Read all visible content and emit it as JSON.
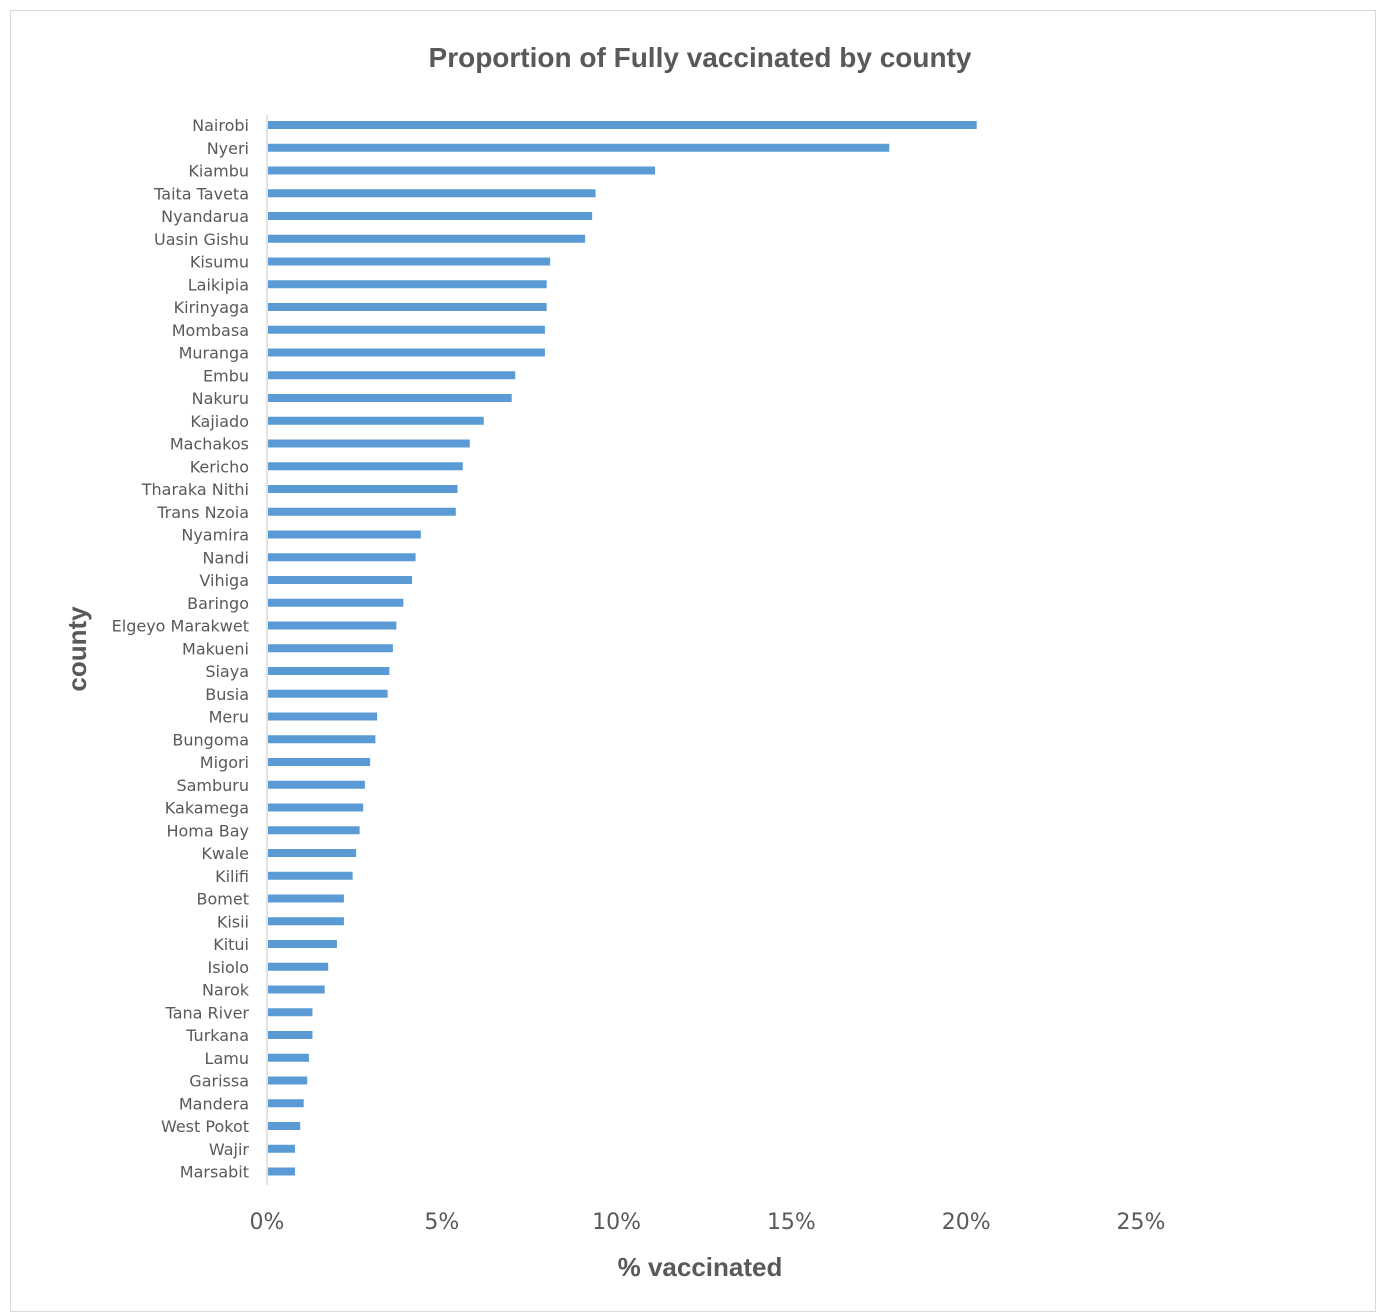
{
  "chart_data": {
    "type": "bar",
    "orientation": "horizontal",
    "title": "Proportion of Fully vaccinated by county",
    "xlabel": "% vaccinated",
    "ylabel": "county",
    "xlim": [
      0,
      25
    ],
    "x_ticks": [
      "0%",
      "5%",
      "10%",
      "15%",
      "20%",
      "25%"
    ],
    "grid": false,
    "legend": "none",
    "bar_color": "#5b9bd5",
    "categories": [
      "Nairobi",
      "Nyeri",
      "Kiambu",
      "Taita Taveta",
      "Nyandarua",
      "Uasin Gishu",
      "Kisumu",
      "Laikipia",
      "Kirinyaga",
      "Mombasa",
      "Muranga",
      "Embu",
      "Nakuru",
      "Kajiado",
      "Machakos",
      "Kericho",
      "Tharaka Nithi",
      "Trans Nzoia",
      "Nyamira",
      "Nandi",
      "Vihiga",
      "Baringo",
      "Elgeyo Marakwet",
      "Makueni",
      "Siaya",
      "Busia",
      "Meru",
      "Bungoma",
      "Migori",
      "Samburu",
      "Kakamega",
      "Homa Bay",
      "Kwale",
      "Kilifi",
      "Bomet",
      "Kisii",
      "Kitui",
      "Isiolo",
      "Narok",
      "Tana River",
      "Turkana",
      "Lamu",
      "Garissa",
      "Mandera",
      "West Pokot",
      "Wajir",
      "Marsabit"
    ],
    "values": [
      20.3,
      17.8,
      11.1,
      9.4,
      9.3,
      9.1,
      8.1,
      8.0,
      8.0,
      7.95,
      7.95,
      7.1,
      7.0,
      6.2,
      5.8,
      5.6,
      5.45,
      5.4,
      4.4,
      4.25,
      4.15,
      3.9,
      3.7,
      3.6,
      3.5,
      3.45,
      3.15,
      3.1,
      2.95,
      2.8,
      2.75,
      2.65,
      2.55,
      2.45,
      2.2,
      2.2,
      2.0,
      1.75,
      1.65,
      1.3,
      1.3,
      1.2,
      1.15,
      1.05,
      0.95,
      0.8,
      0.8
    ]
  }
}
